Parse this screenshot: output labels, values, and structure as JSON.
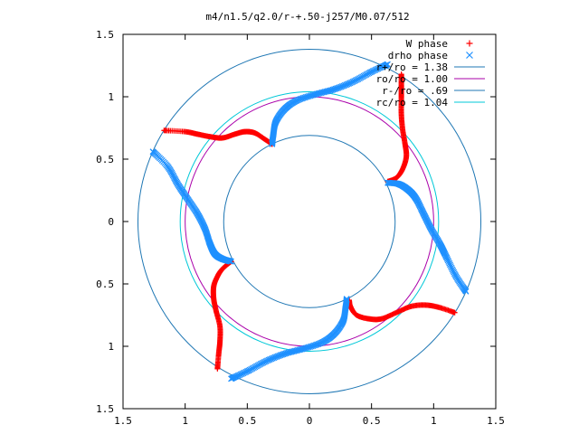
{
  "chart_data": {
    "type": "scatter",
    "title": "m4/n1.5/q2.0/r-+.50-j257/M0.07/512",
    "xlabel": "",
    "ylabel": "",
    "xlim": [
      -1.5,
      1.5
    ],
    "ylim": [
      -1.5,
      1.5
    ],
    "xticks": [
      {
        "value": -1.5,
        "label": "1.5"
      },
      {
        "value": -1.0,
        "label": "1"
      },
      {
        "value": -0.5,
        "label": "0.5"
      },
      {
        "value": 0.0,
        "label": "0"
      },
      {
        "value": 0.5,
        "label": "0.5"
      },
      {
        "value": 1.0,
        "label": "1"
      },
      {
        "value": 1.5,
        "label": "1.5"
      }
    ],
    "yticks": [
      {
        "value": -1.5,
        "label": "1.5"
      },
      {
        "value": -1.0,
        "label": "1"
      },
      {
        "value": -0.5,
        "label": "0.5"
      },
      {
        "value": 0.0,
        "label": "0"
      },
      {
        "value": 0.5,
        "label": "0.5"
      },
      {
        "value": 1.0,
        "label": "1"
      },
      {
        "value": 1.5,
        "label": "1.5"
      }
    ],
    "grid": false,
    "legend_position": "top-right",
    "series": [
      {
        "name": "W phase",
        "kind": "points",
        "marker": "+",
        "color": "#ff0000",
        "arms": [
          [
            [
              -0.3,
              0.62
            ],
            [
              -0.36,
              0.66
            ],
            [
              -0.44,
              0.71
            ],
            [
              -0.52,
              0.72
            ],
            [
              -0.6,
              0.7
            ],
            [
              -0.7,
              0.67
            ],
            [
              -0.8,
              0.68
            ],
            [
              -0.9,
              0.7
            ],
            [
              -1.0,
              0.72
            ],
            [
              -1.17,
              0.73
            ]
          ],
          [
            [
              -0.63,
              -0.32
            ],
            [
              -0.7,
              -0.38
            ],
            [
              -0.74,
              -0.44
            ],
            [
              -0.77,
              -0.52
            ],
            [
              -0.77,
              -0.62
            ],
            [
              -0.75,
              -0.72
            ],
            [
              -0.72,
              -0.84
            ],
            [
              -0.72,
              -0.96
            ],
            [
              -0.73,
              -1.06
            ],
            [
              -0.74,
              -1.18
            ]
          ],
          [
            [
              0.32,
              -0.63
            ],
            [
              0.33,
              -0.68
            ],
            [
              0.38,
              -0.75
            ],
            [
              0.48,
              -0.78
            ],
            [
              0.58,
              -0.78
            ],
            [
              0.7,
              -0.73
            ],
            [
              0.82,
              -0.68
            ],
            [
              0.94,
              -0.67
            ],
            [
              1.05,
              -0.69
            ],
            [
              1.17,
              -0.73
            ]
          ],
          [
            [
              0.63,
              0.32
            ],
            [
              0.7,
              0.35
            ],
            [
              0.75,
              0.42
            ],
            [
              0.78,
              0.52
            ],
            [
              0.77,
              0.62
            ],
            [
              0.75,
              0.74
            ],
            [
              0.74,
              0.86
            ],
            [
              0.74,
              0.98
            ],
            [
              0.74,
              1.08
            ],
            [
              0.74,
              1.18
            ]
          ]
        ]
      },
      {
        "name": "drho phase",
        "kind": "points",
        "marker": "x",
        "color": "#1e90ff",
        "arms": [
          [
            [
              -0.3,
              0.62
            ],
            [
              -0.29,
              0.7
            ],
            [
              -0.27,
              0.8
            ],
            [
              -0.2,
              0.9
            ],
            [
              -0.1,
              0.97
            ],
            [
              0.05,
              1.02
            ],
            [
              0.2,
              1.06
            ],
            [
              0.35,
              1.12
            ],
            [
              0.5,
              1.2
            ],
            [
              0.63,
              1.26
            ]
          ],
          [
            [
              -0.63,
              -0.32
            ],
            [
              -0.7,
              -0.3
            ],
            [
              -0.76,
              -0.26
            ],
            [
              -0.8,
              -0.18
            ],
            [
              -0.84,
              -0.06
            ],
            [
              -0.9,
              0.06
            ],
            [
              -0.98,
              0.18
            ],
            [
              -1.06,
              0.3
            ],
            [
              -1.14,
              0.44
            ],
            [
              -1.26,
              0.56
            ]
          ],
          [
            [
              0.3,
              -0.62
            ],
            [
              0.29,
              -0.7
            ],
            [
              0.27,
              -0.8
            ],
            [
              0.2,
              -0.9
            ],
            [
              0.1,
              -0.97
            ],
            [
              -0.05,
              -1.02
            ],
            [
              -0.2,
              -1.06
            ],
            [
              -0.35,
              -1.12
            ],
            [
              -0.5,
              -1.2
            ],
            [
              -0.63,
              -1.26
            ]
          ],
          [
            [
              0.63,
              0.31
            ],
            [
              0.72,
              0.3
            ],
            [
              0.8,
              0.25
            ],
            [
              0.86,
              0.18
            ],
            [
              0.92,
              0.06
            ],
            [
              0.98,
              -0.06
            ],
            [
              1.05,
              -0.18
            ],
            [
              1.1,
              -0.28
            ],
            [
              1.18,
              -0.44
            ],
            [
              1.26,
              -0.56
            ]
          ]
        ]
      },
      {
        "name": "r+/ro = 1.38",
        "kind": "circle",
        "radius": 1.38,
        "color": "#1f77b4"
      },
      {
        "name": "ro/ro = 1.00",
        "kind": "circle",
        "radius": 1.0,
        "color": "#aa00aa"
      },
      {
        "name": "r-/ro = .69",
        "kind": "circle",
        "radius": 0.69,
        "color": "#1f77b4"
      },
      {
        "name": "rc/ro = 1.04",
        "kind": "circle",
        "radius": 1.04,
        "color": "#00c8d8"
      }
    ]
  }
}
